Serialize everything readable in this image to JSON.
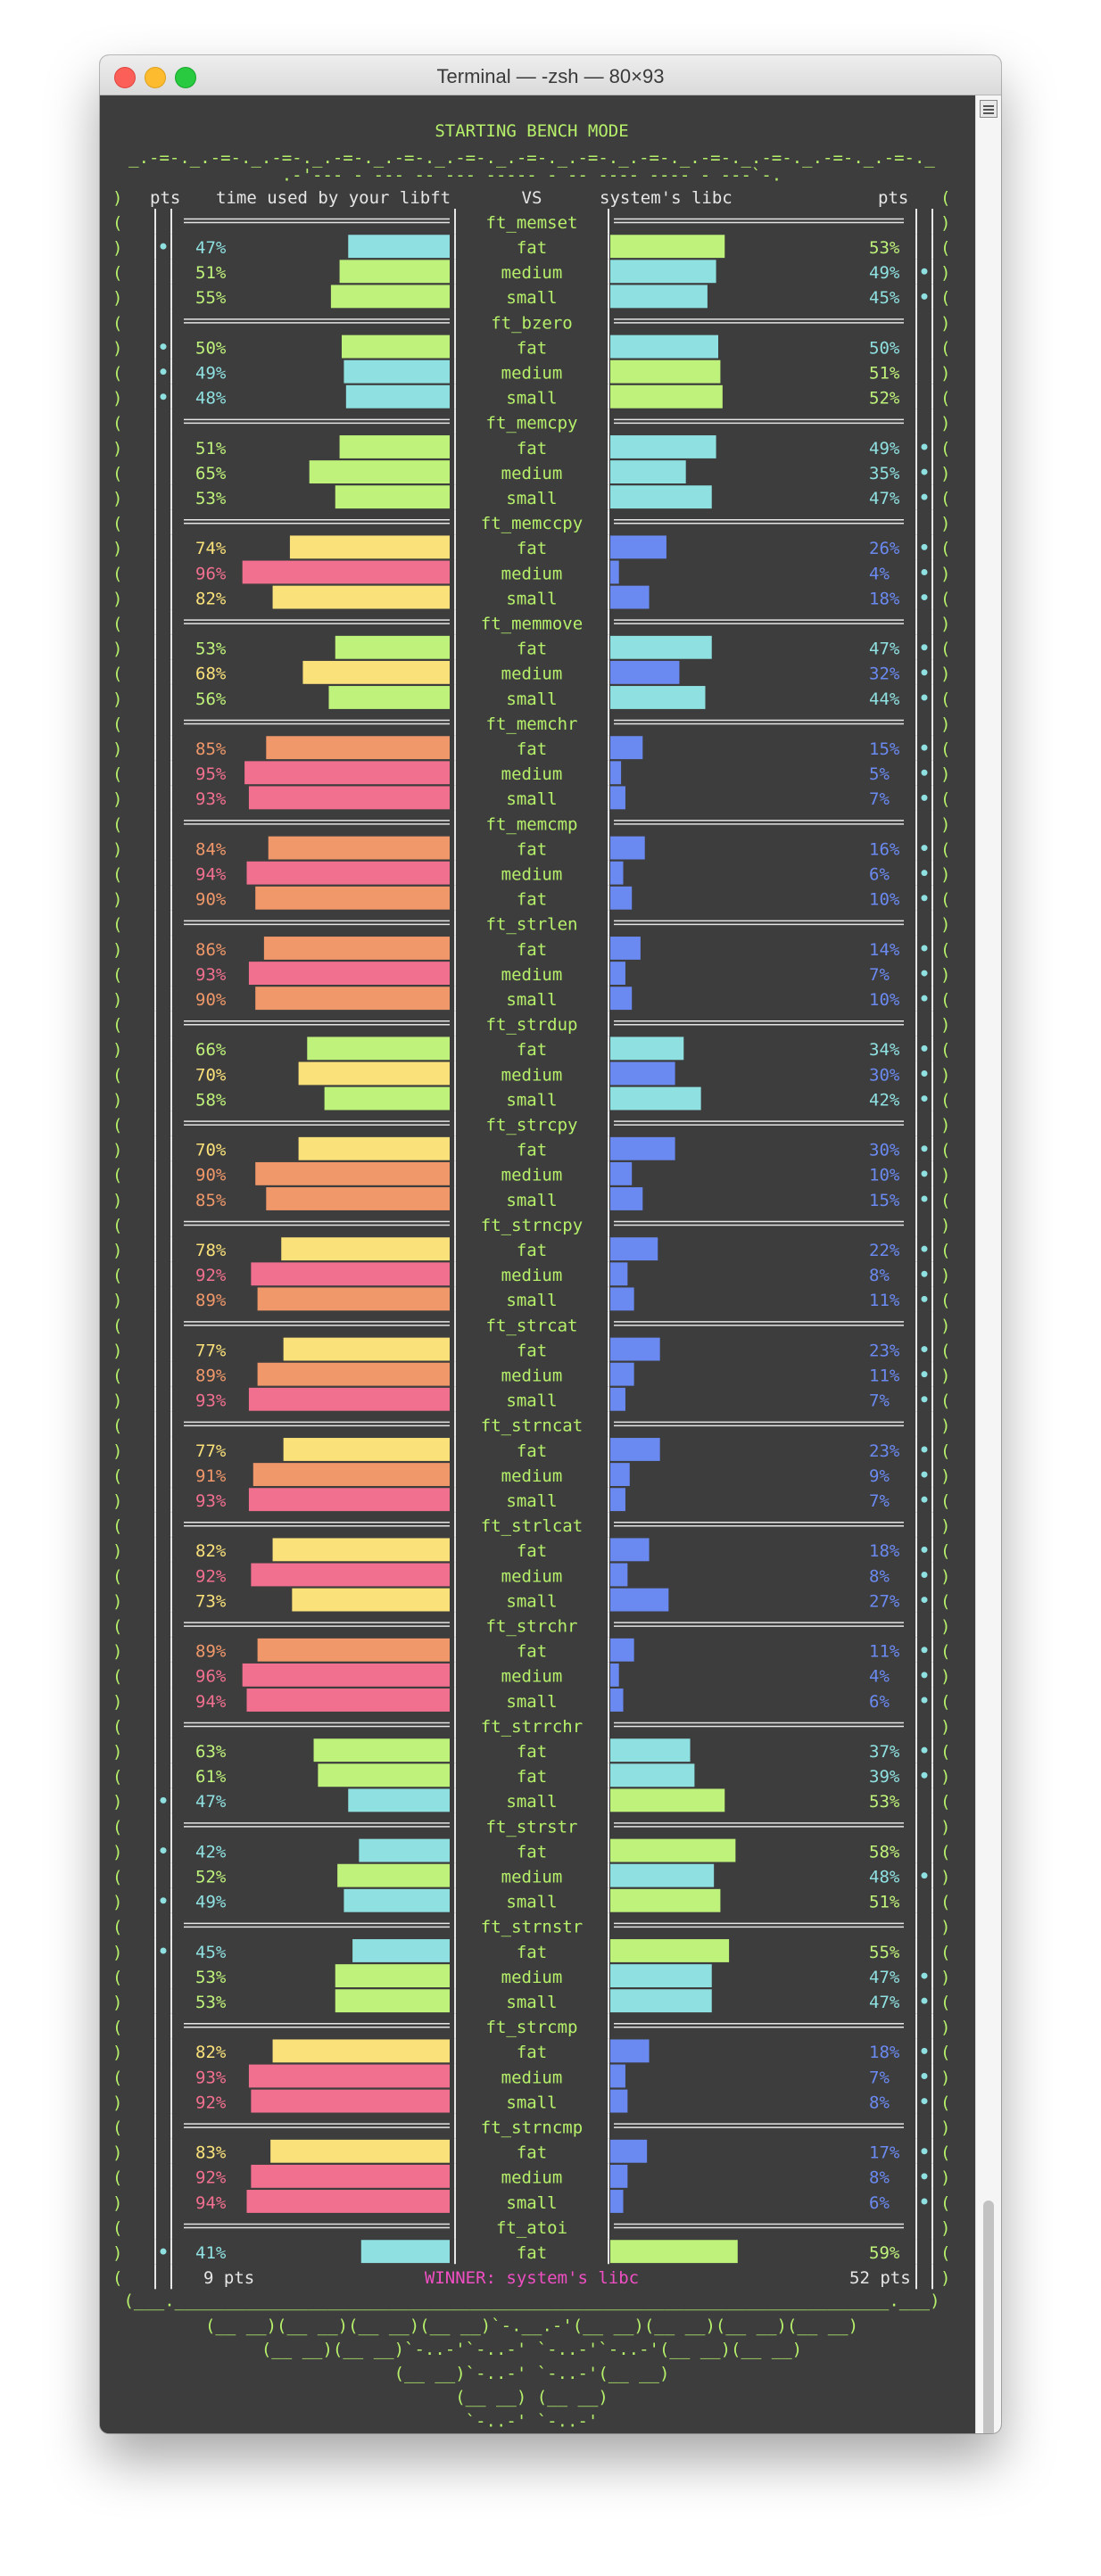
{
  "window": {
    "title": "Terminal — -zsh — 80×93"
  },
  "header": {
    "mode_title": "STARTING BENCH MODE",
    "col_pts_left": "pts",
    "col_yours": "time used by your libft",
    "col_vs": "VS",
    "col_system": "system's libc",
    "col_pts_right": "pts"
  },
  "footer": {
    "left_pts": "9 pts",
    "winner": "WINNER: system's libc",
    "right_pts": "52 pts"
  },
  "colors": {
    "background": "#3d3d3d",
    "frame_green": "#b6f06a",
    "cyan": "#8fe0e1",
    "lime": "#bff27a",
    "yellow": "#fae17a",
    "orange": "#f1986a",
    "pink": "#f2708f",
    "blue": "#6b8af1",
    "magenta": "#f04fc4",
    "text_default": "#e6e6e6"
  },
  "chart_data": {
    "type": "bar",
    "title": "STARTING BENCH MODE",
    "groups": [
      {
        "name": "ft_memset",
        "rows": [
          {
            "size": "fat",
            "yours": 47,
            "system": 53,
            "yours_pt": true,
            "system_pt": false
          },
          {
            "size": "medium",
            "yours": 51,
            "system": 49,
            "yours_pt": false,
            "system_pt": true
          },
          {
            "size": "small",
            "yours": 55,
            "system": 45,
            "yours_pt": false,
            "system_pt": true
          }
        ]
      },
      {
        "name": "ft_bzero",
        "rows": [
          {
            "size": "fat",
            "yours": 50,
            "system": 50,
            "yours_pt": true,
            "system_pt": false
          },
          {
            "size": "medium",
            "yours": 49,
            "system": 51,
            "yours_pt": true,
            "system_pt": false
          },
          {
            "size": "small",
            "yours": 48,
            "system": 52,
            "yours_pt": true,
            "system_pt": false
          }
        ]
      },
      {
        "name": "ft_memcpy",
        "rows": [
          {
            "size": "fat",
            "yours": 51,
            "system": 49,
            "yours_pt": false,
            "system_pt": true
          },
          {
            "size": "medium",
            "yours": 65,
            "system": 35,
            "yours_pt": false,
            "system_pt": true
          },
          {
            "size": "small",
            "yours": 53,
            "system": 47,
            "yours_pt": false,
            "system_pt": true
          }
        ]
      },
      {
        "name": "ft_memccpy",
        "rows": [
          {
            "size": "fat",
            "yours": 74,
            "system": 26,
            "yours_pt": false,
            "system_pt": true
          },
          {
            "size": "medium",
            "yours": 96,
            "system": 4,
            "yours_pt": false,
            "system_pt": true
          },
          {
            "size": "small",
            "yours": 82,
            "system": 18,
            "yours_pt": false,
            "system_pt": true
          }
        ]
      },
      {
        "name": "ft_memmove",
        "rows": [
          {
            "size": "fat",
            "yours": 53,
            "system": 47,
            "yours_pt": false,
            "system_pt": true
          },
          {
            "size": "medium",
            "yours": 68,
            "system": 32,
            "yours_pt": false,
            "system_pt": true
          },
          {
            "size": "small",
            "yours": 56,
            "system": 44,
            "yours_pt": false,
            "system_pt": true
          }
        ]
      },
      {
        "name": "ft_memchr",
        "rows": [
          {
            "size": "fat",
            "yours": 85,
            "system": 15,
            "yours_pt": false,
            "system_pt": true
          },
          {
            "size": "medium",
            "yours": 95,
            "system": 5,
            "yours_pt": false,
            "system_pt": true
          },
          {
            "size": "small",
            "yours": 93,
            "system": 7,
            "yours_pt": false,
            "system_pt": true
          }
        ]
      },
      {
        "name": "ft_memcmp",
        "rows": [
          {
            "size": "fat",
            "yours": 84,
            "system": 16,
            "yours_pt": false,
            "system_pt": true
          },
          {
            "size": "medium",
            "yours": 94,
            "system": 6,
            "yours_pt": false,
            "system_pt": true
          },
          {
            "size": "fat",
            "yours": 90,
            "system": 10,
            "yours_pt": false,
            "system_pt": true
          }
        ]
      },
      {
        "name": "ft_strlen",
        "rows": [
          {
            "size": "fat",
            "yours": 86,
            "system": 14,
            "yours_pt": false,
            "system_pt": true
          },
          {
            "size": "medium",
            "yours": 93,
            "system": 7,
            "yours_pt": false,
            "system_pt": true
          },
          {
            "size": "small",
            "yours": 90,
            "system": 10,
            "yours_pt": false,
            "system_pt": true
          }
        ]
      },
      {
        "name": "ft_strdup",
        "rows": [
          {
            "size": "fat",
            "yours": 66,
            "system": 34,
            "yours_pt": false,
            "system_pt": true
          },
          {
            "size": "medium",
            "yours": 70,
            "system": 30,
            "yours_pt": false,
            "system_pt": true
          },
          {
            "size": "small",
            "yours": 58,
            "system": 42,
            "yours_pt": false,
            "system_pt": true
          }
        ]
      },
      {
        "name": "ft_strcpy",
        "rows": [
          {
            "size": "fat",
            "yours": 70,
            "system": 30,
            "yours_pt": false,
            "system_pt": true
          },
          {
            "size": "medium",
            "yours": 90,
            "system": 10,
            "yours_pt": false,
            "system_pt": true
          },
          {
            "size": "small",
            "yours": 85,
            "system": 15,
            "yours_pt": false,
            "system_pt": true
          }
        ]
      },
      {
        "name": "ft_strncpy",
        "rows": [
          {
            "size": "fat",
            "yours": 78,
            "system": 22,
            "yours_pt": false,
            "system_pt": true
          },
          {
            "size": "medium",
            "yours": 92,
            "system": 8,
            "yours_pt": false,
            "system_pt": true
          },
          {
            "size": "small",
            "yours": 89,
            "system": 11,
            "yours_pt": false,
            "system_pt": true
          }
        ]
      },
      {
        "name": "ft_strcat",
        "rows": [
          {
            "size": "fat",
            "yours": 77,
            "system": 23,
            "yours_pt": false,
            "system_pt": true
          },
          {
            "size": "medium",
            "yours": 89,
            "system": 11,
            "yours_pt": false,
            "system_pt": true
          },
          {
            "size": "small",
            "yours": 93,
            "system": 7,
            "yours_pt": false,
            "system_pt": true
          }
        ]
      },
      {
        "name": "ft_strncat",
        "rows": [
          {
            "size": "fat",
            "yours": 77,
            "system": 23,
            "yours_pt": false,
            "system_pt": true
          },
          {
            "size": "medium",
            "yours": 91,
            "system": 9,
            "yours_pt": false,
            "system_pt": true
          },
          {
            "size": "small",
            "yours": 93,
            "system": 7,
            "yours_pt": false,
            "system_pt": true
          }
        ]
      },
      {
        "name": "ft_strlcat",
        "rows": [
          {
            "size": "fat",
            "yours": 82,
            "system": 18,
            "yours_pt": false,
            "system_pt": true
          },
          {
            "size": "medium",
            "yours": 92,
            "system": 8,
            "yours_pt": false,
            "system_pt": true
          },
          {
            "size": "small",
            "yours": 73,
            "system": 27,
            "yours_pt": false,
            "system_pt": true
          }
        ]
      },
      {
        "name": "ft_strchr",
        "rows": [
          {
            "size": "fat",
            "yours": 89,
            "system": 11,
            "yours_pt": false,
            "system_pt": true
          },
          {
            "size": "medium",
            "yours": 96,
            "system": 4,
            "yours_pt": false,
            "system_pt": true
          },
          {
            "size": "small",
            "yours": 94,
            "system": 6,
            "yours_pt": false,
            "system_pt": true
          }
        ]
      },
      {
        "name": "ft_strrchr",
        "rows": [
          {
            "size": "fat",
            "yours": 63,
            "system": 37,
            "yours_pt": false,
            "system_pt": true
          },
          {
            "size": "fat",
            "yours": 61,
            "system": 39,
            "yours_pt": false,
            "system_pt": true
          },
          {
            "size": "small",
            "yours": 47,
            "system": 53,
            "yours_pt": true,
            "system_pt": false
          }
        ]
      },
      {
        "name": "ft_strstr",
        "rows": [
          {
            "size": "fat",
            "yours": 42,
            "system": 58,
            "yours_pt": true,
            "system_pt": false
          },
          {
            "size": "medium",
            "yours": 52,
            "system": 48,
            "yours_pt": false,
            "system_pt": true
          },
          {
            "size": "small",
            "yours": 49,
            "system": 51,
            "yours_pt": true,
            "system_pt": false
          }
        ]
      },
      {
        "name": "ft_strnstr",
        "rows": [
          {
            "size": "fat",
            "yours": 45,
            "system": 55,
            "yours_pt": true,
            "system_pt": false
          },
          {
            "size": "medium",
            "yours": 53,
            "system": 47,
            "yours_pt": false,
            "system_pt": true
          },
          {
            "size": "small",
            "yours": 53,
            "system": 47,
            "yours_pt": false,
            "system_pt": true
          }
        ]
      },
      {
        "name": "ft_strcmp",
        "rows": [
          {
            "size": "fat",
            "yours": 82,
            "system": 18,
            "yours_pt": false,
            "system_pt": true
          },
          {
            "size": "medium",
            "yours": 93,
            "system": 7,
            "yours_pt": false,
            "system_pt": true
          },
          {
            "size": "small",
            "yours": 92,
            "system": 8,
            "yours_pt": false,
            "system_pt": true
          }
        ]
      },
      {
        "name": "ft_strncmp",
        "rows": [
          {
            "size": "fat",
            "yours": 83,
            "system": 17,
            "yours_pt": false,
            "system_pt": true
          },
          {
            "size": "medium",
            "yours": 92,
            "system": 8,
            "yours_pt": false,
            "system_pt": true
          },
          {
            "size": "small",
            "yours": 94,
            "system": 6,
            "yours_pt": false,
            "system_pt": true
          }
        ]
      },
      {
        "name": "ft_atoi",
        "rows": [
          {
            "size": "fat",
            "yours": 41,
            "system": 59,
            "yours_pt": true,
            "system_pt": false
          }
        ]
      }
    ]
  }
}
